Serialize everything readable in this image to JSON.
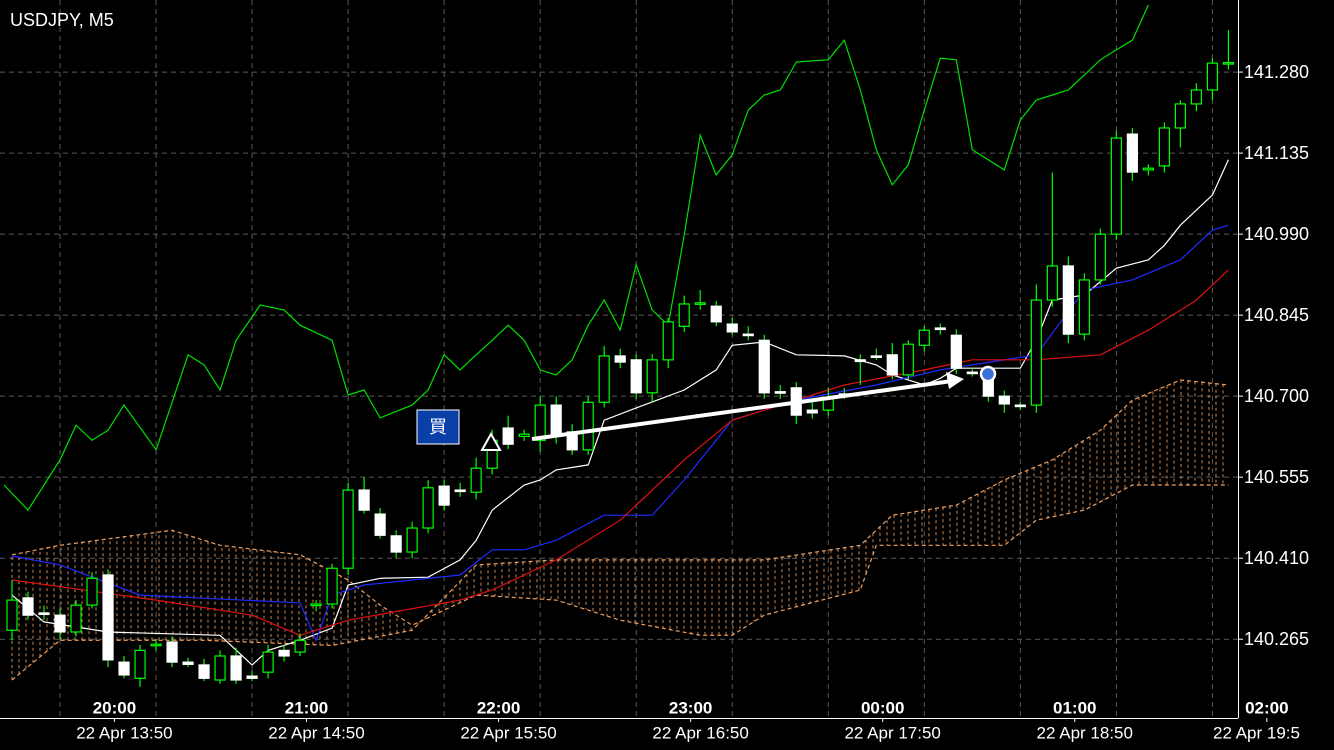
{
  "chart_data": {
    "type": "candlestick",
    "title": "USDJPY, M5",
    "annotation": "買",
    "xlim": [
      -0.75,
      76.6
    ],
    "ylim": [
      140.124,
      141.409
    ],
    "yticks": [
      {
        "value": 141.28,
        "label": "141.280"
      },
      {
        "value": 141.135,
        "label": "141.135"
      },
      {
        "value": 140.99,
        "label": "140.990"
      },
      {
        "value": 140.845,
        "label": "140.845"
      },
      {
        "value": 140.7,
        "label": "140.700"
      },
      {
        "value": 140.555,
        "label": "140.555"
      },
      {
        "value": 140.41,
        "label": "140.410"
      },
      {
        "value": 140.265,
        "label": "140.265"
      }
    ],
    "xticks": [
      {
        "value": 6.4,
        "label": "20:00"
      },
      {
        "value": 18.4,
        "label": "21:00"
      },
      {
        "value": 30.4,
        "label": "22:00"
      },
      {
        "value": 42.4,
        "label": "23:00"
      },
      {
        "value": 54.4,
        "label": "00:00"
      },
      {
        "value": 66.4,
        "label": "01:00"
      },
      {
        "value": 78.4,
        "label": "02:00"
      }
    ],
    "xticks2": [
      {
        "value": 6.4,
        "label": "22 Apr 13:50"
      },
      {
        "value": 18.4,
        "label": "22 Apr 14:50"
      },
      {
        "value": 30.4,
        "label": "22 Apr 15:50"
      },
      {
        "value": 42.4,
        "label": "22 Apr 16:50"
      },
      {
        "value": 54.4,
        "label": "22 Apr 17:50"
      },
      {
        "value": 66.4,
        "label": "22 Apr 18:50"
      },
      {
        "value": 78.4,
        "label": "22 Apr 19:5"
      }
    ],
    "grid": true,
    "candles": {
      "up_color": "#00ff00",
      "down_color": "#ffffff",
      "open": [
        140.281,
        140.339,
        140.312,
        140.308,
        140.278,
        140.326,
        140.38,
        140.224,
        140.195,
        140.254,
        140.26,
        140.224,
        140.219,
        140.192,
        140.235,
        140.199,
        140.206,
        140.245,
        140.242,
        140.326,
        140.328,
        140.392,
        140.532,
        140.489,
        140.45,
        140.421,
        140.464,
        140.539,
        140.532,
        140.528,
        140.571,
        140.643,
        140.628,
        140.621,
        140.684,
        140.636,
        140.604,
        140.689,
        140.772,
        140.765,
        140.706,
        140.765,
        140.825,
        140.865,
        140.861,
        140.829,
        140.811,
        140.8,
        140.708,
        140.715,
        140.675,
        140.675,
        140.704,
        140.765,
        140.772,
        140.774,
        140.738,
        140.791,
        140.822,
        140.809,
        140.743,
        140.729,
        140.7,
        140.684,
        140.684,
        140.872,
        140.933,
        140.811,
        140.908,
        140.99,
        141.169,
        141.105,
        141.112,
        141.18,
        141.223,
        141.248,
        141.296
      ],
      "high": [
        140.371,
        140.35,
        140.325,
        140.32,
        140.335,
        140.385,
        140.39,
        140.235,
        140.255,
        140.265,
        140.27,
        140.232,
        140.23,
        140.245,
        140.25,
        140.208,
        140.255,
        140.255,
        140.275,
        140.335,
        140.4,
        140.545,
        140.555,
        140.5,
        140.46,
        140.475,
        140.55,
        140.55,
        140.545,
        140.59,
        140.64,
        140.665,
        140.64,
        140.7,
        140.7,
        140.65,
        140.7,
        140.79,
        140.785,
        140.775,
        140.775,
        140.84,
        140.88,
        140.89,
        140.87,
        140.84,
        140.825,
        140.81,
        140.72,
        140.725,
        140.69,
        140.715,
        140.715,
        140.775,
        140.785,
        140.795,
        140.8,
        140.825,
        140.83,
        140.82,
        140.75,
        140.74,
        140.71,
        140.69,
        140.9,
        141.1,
        140.95,
        140.92,
        141.0,
        141.175,
        141.18,
        141.115,
        141.19,
        141.23,
        141.26,
        141.305,
        141.355
      ],
      "low": [
        140.263,
        140.3,
        140.3,
        140.265,
        140.27,
        140.32,
        140.215,
        140.195,
        140.18,
        140.245,
        140.215,
        140.215,
        140.19,
        140.185,
        140.185,
        140.19,
        140.195,
        140.225,
        140.235,
        140.315,
        140.32,
        140.38,
        140.49,
        140.445,
        140.41,
        140.41,
        140.455,
        140.495,
        140.52,
        140.515,
        140.56,
        140.605,
        140.62,
        140.6,
        140.615,
        140.595,
        140.595,
        140.68,
        140.75,
        140.695,
        140.69,
        140.75,
        140.815,
        140.855,
        140.825,
        140.81,
        140.8,
        140.695,
        140.695,
        140.65,
        140.66,
        140.665,
        140.695,
        140.72,
        140.765,
        140.73,
        140.73,
        140.78,
        140.81,
        140.74,
        140.735,
        140.69,
        140.67,
        140.675,
        140.67,
        140.86,
        140.795,
        140.8,
        140.9,
        140.98,
        141.085,
        141.095,
        141.1,
        141.145,
        141.21,
        141.23,
        141.285
      ],
      "close": [
        140.335,
        140.308,
        140.31,
        140.278,
        140.326,
        140.374,
        140.228,
        140.201,
        140.245,
        140.256,
        140.224,
        140.22,
        140.195,
        140.235,
        140.192,
        140.195,
        140.242,
        140.235,
        140.263,
        140.328,
        140.392,
        140.532,
        140.496,
        140.451,
        140.421,
        140.464,
        140.536,
        140.505,
        140.53,
        140.571,
        140.621,
        140.614,
        140.632,
        140.684,
        140.63,
        140.604,
        140.689,
        140.772,
        140.761,
        140.706,
        140.765,
        140.833,
        140.865,
        140.867,
        140.833,
        140.815,
        140.809,
        140.706,
        140.706,
        140.666,
        140.67,
        140.697,
        140.702,
        140.762,
        140.77,
        140.738,
        140.793,
        140.818,
        140.82,
        140.75,
        140.741,
        140.7,
        140.686,
        140.682,
        140.872,
        140.933,
        140.811,
        140.908,
        140.99,
        141.162,
        141.101,
        141.108,
        141.18,
        141.223,
        141.248,
        141.296,
        141.297
      ]
    },
    "lines": [
      {
        "color": "#ffffff",
        "x": [
          0,
          2,
          6,
          13,
          15,
          16,
          18,
          20,
          21,
          23,
          26,
          28,
          29,
          30,
          32,
          33,
          34,
          36,
          37,
          39,
          42,
          44,
          45,
          47,
          49,
          52,
          54,
          55,
          57,
          58,
          59,
          63,
          64,
          65,
          67,
          69,
          71,
          72,
          73,
          74,
          75,
          76
        ],
        "values": [
          140.344,
          140.296,
          140.278,
          140.272,
          140.219,
          140.245,
          140.263,
          140.285,
          140.362,
          140.374,
          140.376,
          140.407,
          140.442,
          140.496,
          140.541,
          140.55,
          140.568,
          140.577,
          140.657,
          140.679,
          140.711,
          140.747,
          140.791,
          140.797,
          140.774,
          140.772,
          140.756,
          140.738,
          140.72,
          140.732,
          140.75,
          140.75,
          140.8,
          140.872,
          140.881,
          140.929,
          140.944,
          140.97,
          141.006,
          141.033,
          141.06,
          141.123
        ]
      },
      {
        "color": "#1f2bff",
        "x": [
          0,
          3,
          8,
          18,
          19,
          20,
          22,
          28,
          30,
          32,
          34,
          37,
          40,
          42,
          45,
          49,
          54,
          58,
          64,
          67,
          70,
          73,
          75,
          76
        ],
        "values": [
          140.414,
          140.398,
          140.344,
          140.33,
          140.263,
          140.344,
          140.362,
          140.38,
          140.425,
          140.425,
          140.442,
          140.487,
          140.487,
          140.55,
          140.657,
          140.693,
          140.72,
          140.747,
          140.774,
          140.89,
          140.908,
          140.944,
          140.997,
          141.006
        ]
      },
      {
        "color": "#e01010",
        "x": [
          0,
          9,
          15,
          18,
          21,
          28,
          30,
          34,
          38,
          42,
          45,
          49,
          52,
          57,
          60,
          64,
          68,
          71,
          74,
          76
        ],
        "values": [
          140.371,
          140.335,
          140.308,
          140.272,
          140.299,
          140.335,
          140.353,
          140.407,
          140.478,
          140.586,
          140.657,
          140.693,
          140.72,
          140.747,
          140.765,
          140.765,
          140.774,
          140.818,
          140.872,
          140.926
        ]
      },
      {
        "color": "#00e000",
        "x": [
          -0.5,
          1,
          3,
          4,
          5,
          6,
          7,
          9,
          11,
          12,
          13,
          14,
          15.5,
          17,
          18,
          20,
          21,
          22,
          23,
          25,
          26,
          27,
          28,
          29,
          30,
          31,
          32,
          33,
          34,
          35,
          36,
          37,
          38,
          39,
          40,
          41,
          42,
          43,
          44,
          45,
          46,
          47,
          48,
          49,
          51,
          52,
          53,
          54,
          55,
          56,
          57,
          58,
          59,
          60,
          61,
          62,
          63,
          64,
          65,
          66,
          67,
          68,
          69,
          70,
          71
        ],
        "values": [
          140.541,
          140.496,
          140.586,
          140.648,
          140.621,
          140.639,
          140.684,
          140.604,
          140.774,
          140.756,
          140.711,
          140.8,
          140.863,
          140.854,
          140.827,
          140.8,
          140.702,
          140.711,
          140.661,
          140.684,
          140.711,
          140.774,
          140.747,
          140.774,
          140.8,
          140.827,
          140.8,
          140.747,
          140.738,
          140.765,
          140.827,
          140.872,
          140.818,
          140.935,
          140.854,
          140.827,
          140.988,
          141.167,
          141.096,
          141.132,
          141.212,
          141.239,
          141.248,
          141.298,
          141.302,
          141.337,
          141.248,
          141.141,
          141.078,
          141.114,
          141.212,
          141.305,
          141.302,
          141.141,
          141.123,
          141.105,
          141.194,
          141.23,
          141.239,
          141.248,
          141.275,
          141.302,
          141.32,
          141.337,
          141.4
        ]
      }
    ],
    "cloud": {
      "color": "#f0a060",
      "span_a": {
        "x": [
          0,
          3,
          12,
          20,
          25,
          29,
          34,
          47,
          53,
          55,
          59,
          62,
          65,
          68,
          70,
          73,
          76
        ],
        "values": [
          140.192,
          140.263,
          140.263,
          140.254,
          140.281,
          140.398,
          140.407,
          140.407,
          140.433,
          140.487,
          140.505,
          140.55,
          140.586,
          140.639,
          140.693,
          140.729,
          140.72
        ]
      },
      "span_b": {
        "x": [
          0,
          3,
          10,
          13,
          18,
          21,
          23,
          25,
          29,
          34,
          38,
          43,
          45,
          47,
          53,
          54,
          62,
          64,
          67,
          70,
          76
        ],
        "values": [
          140.416,
          140.433,
          140.46,
          140.433,
          140.416,
          140.371,
          140.326,
          140.29,
          140.344,
          140.335,
          140.299,
          140.272,
          140.272,
          140.308,
          140.353,
          140.433,
          140.433,
          140.478,
          140.496,
          140.541,
          140.541
        ]
      }
    }
  }
}
